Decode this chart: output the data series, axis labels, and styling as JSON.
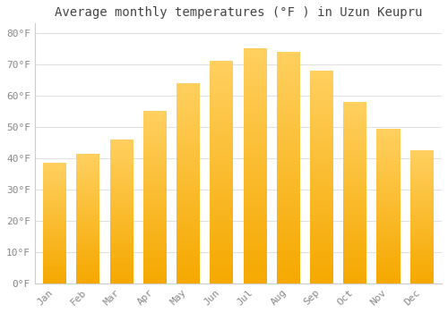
{
  "title": "Average monthly temperatures (°F ) in Uzun Keupru",
  "months": [
    "Jan",
    "Feb",
    "Mar",
    "Apr",
    "May",
    "Jun",
    "Jul",
    "Aug",
    "Sep",
    "Oct",
    "Nov",
    "Dec"
  ],
  "values": [
    38.5,
    41.5,
    46.0,
    55.0,
    64.0,
    71.0,
    75.0,
    74.0,
    68.0,
    58.0,
    49.5,
    42.5
  ],
  "bar_color_bottom": "#F5A800",
  "bar_color_top": "#FFD060",
  "background_color": "#FFFFFF",
  "plot_bg_color": "#FFFFFF",
  "ylim": [
    0,
    83
  ],
  "yticks": [
    0,
    10,
    20,
    30,
    40,
    50,
    60,
    70,
    80
  ],
  "ytick_labels": [
    "0°F",
    "10°F",
    "20°F",
    "30°F",
    "40°F",
    "50°F",
    "60°F",
    "70°F",
    "80°F"
  ],
  "title_fontsize": 10,
  "tick_fontsize": 8,
  "grid_color": "#E0E0E0",
  "font_family": "monospace",
  "bar_width": 0.7
}
